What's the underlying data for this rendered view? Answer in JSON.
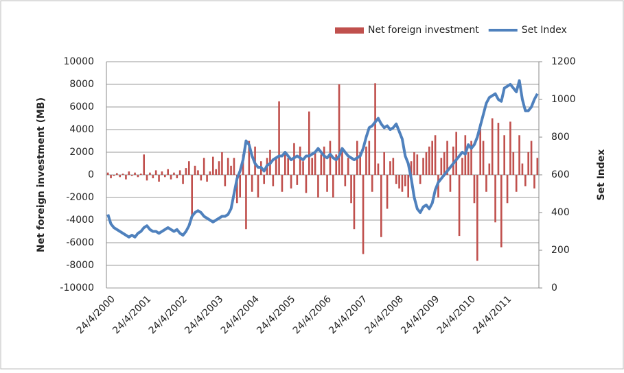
{
  "chart_data": {
    "type": "bar_line",
    "categories": [
      "24/4/2000",
      null,
      null,
      null,
      null,
      null,
      null,
      null,
      null,
      null,
      null,
      null,
      "24/4/2001",
      null,
      null,
      null,
      null,
      null,
      null,
      null,
      null,
      null,
      null,
      null,
      "24/4/2002",
      null,
      null,
      null,
      null,
      null,
      null,
      null,
      null,
      null,
      null,
      null,
      "24/4/2003",
      null,
      null,
      null,
      null,
      null,
      null,
      null,
      null,
      null,
      null,
      null,
      "24/4/2004",
      null,
      null,
      null,
      null,
      null,
      null,
      null,
      null,
      null,
      null,
      null,
      "24/4/2005",
      null,
      null,
      null,
      null,
      null,
      null,
      null,
      null,
      null,
      null,
      null,
      "24/4/2006",
      null,
      null,
      null,
      null,
      null,
      null,
      null,
      null,
      null,
      null,
      null,
      "24/4/2007",
      null,
      null,
      null,
      null,
      null,
      null,
      null,
      null,
      null,
      null,
      null,
      "24/4/2008",
      null,
      null,
      null,
      null,
      null,
      null,
      null,
      null,
      null,
      null,
      null,
      "24/4/2009",
      null,
      null,
      null,
      null,
      null,
      null,
      null,
      null,
      null,
      null,
      null,
      "24/4/2010",
      null,
      null,
      null,
      null,
      null,
      null,
      null,
      null,
      null,
      null,
      null,
      "24/4/2011",
      null,
      null,
      null,
      null,
      null,
      null,
      null,
      null,
      null,
      null,
      null
    ],
    "series": [
      {
        "name": "Net foreign investment",
        "color": "#c0504d",
        "kind": "bar",
        "values": [
          200,
          -300,
          -100,
          150,
          -200,
          100,
          -400,
          300,
          -100,
          200,
          -200,
          100,
          1800,
          -500,
          200,
          -300,
          400,
          -600,
          300,
          -200,
          500,
          -400,
          200,
          -300,
          400,
          -800,
          600,
          1200,
          -3800,
          800,
          400,
          -500,
          1500,
          -600,
          300,
          1600,
          500,
          1200,
          2000,
          -1000,
          1500,
          800,
          1500,
          -2500,
          -2000,
          1800,
          -4800,
          3000,
          -1500,
          2500,
          -2000,
          1200,
          -800,
          1500,
          2200,
          -1000,
          1500,
          6500,
          -1500,
          2000,
          1500,
          -1200,
          2800,
          -900,
          2500,
          1200,
          -1600,
          5600,
          1500,
          2000,
          -2000,
          1800,
          2500,
          -1500,
          3000,
          -2000,
          1800,
          8000,
          2200,
          -1000,
          1500,
          -2500,
          -4800,
          3000,
          2000,
          -7000,
          2500,
          3000,
          -1500,
          8100,
          1000,
          -5500,
          2000,
          -3000,
          1200,
          1500,
          -800,
          -1200,
          -1500,
          -1000,
          -2000,
          1200,
          2000,
          1800,
          -800,
          1500,
          2000,
          2500,
          3000,
          3500,
          -2000,
          1500,
          2000,
          3000,
          -1500,
          2500,
          3800,
          -5400,
          1500,
          3500,
          2000,
          3000,
          -2500,
          -7600,
          4500,
          3000,
          -1500,
          1000,
          5000,
          -4200,
          4600,
          -6400,
          3500,
          -2500,
          4700,
          2000,
          -1500,
          3500,
          1000,
          -1000,
          2000,
          3000,
          -1200,
          1500
        ]
      },
      {
        "name": "Set Index",
        "color": "#4f81bd",
        "kind": "line",
        "axis": "y2",
        "values": [
          390,
          340,
          320,
          310,
          300,
          290,
          280,
          270,
          280,
          270,
          290,
          300,
          320,
          330,
          310,
          300,
          300,
          290,
          300,
          310,
          320,
          310,
          300,
          310,
          290,
          280,
          300,
          330,
          380,
          400,
          410,
          400,
          380,
          370,
          360,
          350,
          360,
          370,
          380,
          380,
          390,
          420,
          500,
          580,
          620,
          680,
          780,
          760,
          700,
          660,
          640,
          640,
          620,
          650,
          660,
          680,
          690,
          700,
          700,
          720,
          700,
          680,
          690,
          700,
          690,
          680,
          700,
          700,
          710,
          720,
          740,
          720,
          700,
          690,
          710,
          690,
          680,
          700,
          740,
          720,
          700,
          690,
          680,
          690,
          700,
          740,
          800,
          850,
          860,
          880,
          900,
          870,
          850,
          860,
          840,
          850,
          870,
          830,
          790,
          700,
          660,
          580,
          480,
          420,
          400,
          430,
          440,
          420,
          450,
          520,
          560,
          580,
          600,
          620,
          640,
          660,
          680,
          700,
          720,
          710,
          760,
          740,
          760,
          800,
          860,
          920,
          980,
          1010,
          1020,
          1030,
          1000,
          990,
          1060,
          1070,
          1080,
          1060,
          1040,
          1100,
          1000,
          940,
          940,
          960,
          1000,
          1030
        ]
      }
    ],
    "y_label": "Net foreign investment (MB)",
    "y2_label": "Set Index",
    "ylim": [
      -10000,
      10000
    ],
    "yticks": [
      -10000,
      -8000,
      -6000,
      -4000,
      -2000,
      0,
      2000,
      4000,
      6000,
      8000,
      10000
    ],
    "y2lim": [
      0,
      1200
    ],
    "y2ticks": [
      0,
      200,
      400,
      600,
      800,
      1000,
      1200
    ],
    "grid": true,
    "legend": "top-right"
  }
}
